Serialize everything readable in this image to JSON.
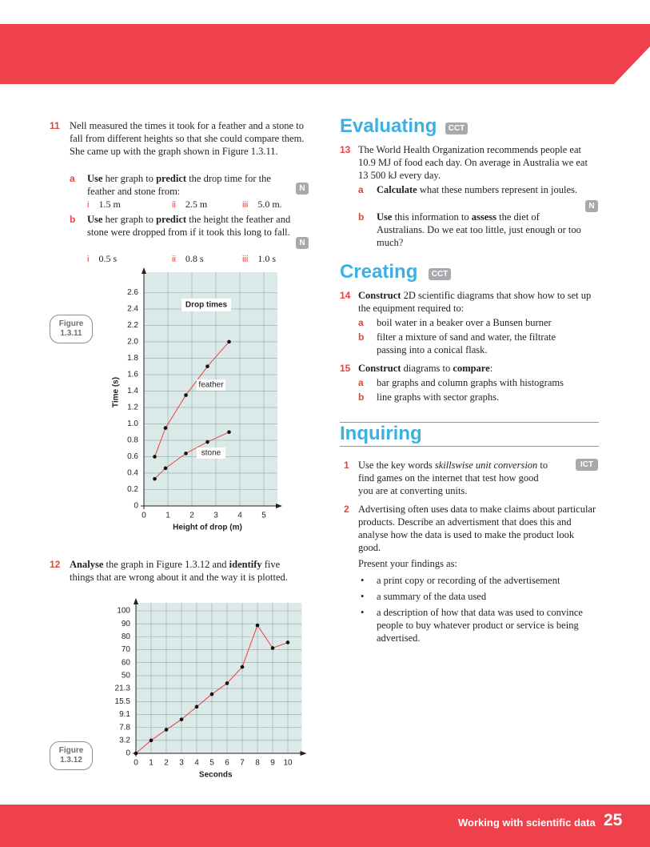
{
  "question_11": {
    "number": "11",
    "text": "Nell measured the times it took for a feather and a stone to fall from different heights so that she could compare them. She came up with the graph shown in Figure 1.3.11.",
    "parts": [
      {
        "letter": "a",
        "segments": [
          "Use",
          " her graph to ",
          "predict",
          " the drop time for the feather and stone from:"
        ],
        "badge": "N",
        "options": [
          {
            "numeral": "i",
            "text": "1.5 m"
          },
          {
            "numeral": "ii",
            "text": "2.5 m"
          },
          {
            "numeral": "iii",
            "text": "5.0 m."
          }
        ]
      },
      {
        "letter": "b",
        "segments": [
          "Use",
          " her graph to ",
          "predict",
          " the height the feather and stone were dropped from if it took this long to fall."
        ],
        "badge": "N",
        "options": [
          {
            "numeral": "i",
            "text": "0.5 s"
          },
          {
            "numeral": "ii",
            "text": "0.8 s"
          },
          {
            "numeral": "iii",
            "text": "1.0 s"
          }
        ]
      }
    ]
  },
  "figure_labels": [
    "Figure 1.3.11",
    "Figure 1.3.12"
  ],
  "question_12": {
    "number": "12",
    "segments": [
      "Analyse",
      " the graph in Figure 1.3.12 and ",
      "identify",
      " five things that are wrong about it and the way it is plotted."
    ]
  },
  "evaluating": {
    "heading": "Evaluating",
    "badge": "CCT",
    "question_13": {
      "number": "13",
      "text": "The World Health Organization recommends people eat 10.9 MJ of food each day. On average in Australia we eat 13 500 kJ every day.",
      "parts": [
        {
          "letter": "a",
          "segments": [
            "Calculate",
            " what these numbers represent in joules."
          ],
          "badge": "N"
        },
        {
          "letter": "b",
          "segments": [
            "Use",
            " this information to ",
            "assess",
            " the diet of Australians. Do we eat too little, just enough or too much?"
          ]
        }
      ]
    }
  },
  "creating": {
    "heading": "Creating",
    "badge": "CCT",
    "question_14": {
      "number": "14",
      "segments": [
        "Construct",
        " 2D scientific diagrams that show how to set up the equipment required to:"
      ],
      "parts": [
        {
          "letter": "a",
          "text": "boil water in a beaker over a Bunsen burner"
        },
        {
          "letter": "b",
          "text": "filter a mixture of sand and water, the filtrate passing into a conical flask."
        }
      ]
    },
    "question_15": {
      "number": "15",
      "segments": [
        "Construct",
        " diagrams to ",
        "compare",
        ":"
      ],
      "parts": [
        {
          "letter": "a",
          "text": "bar graphs and column graphs with histograms"
        },
        {
          "letter": "b",
          "text": "line graphs with sector graphs."
        }
      ]
    }
  },
  "inquiring": {
    "heading": "Inquiring",
    "question_1": {
      "number": "1",
      "segments": [
        "Use the key words ",
        "skillswise unit conversion",
        " to find games on the internet that test how good you are at converting units."
      ],
      "badge": "ICT"
    },
    "question_2": {
      "number": "2",
      "text": "Advertising often uses data to make claims about particular products. Describe an advertisment that does this and analyse how the data is used to make the product look good.",
      "prompt": "Present your findings as:",
      "bullets": [
        "a print copy or recording of the advertisement",
        "a summary of the data used",
        "a description of how that data was used to convince people to buy whatever product or service is being advertised."
      ]
    }
  },
  "footer": {
    "title": "Working with scientific data",
    "page": "25"
  },
  "chart_data": [
    {
      "type": "line",
      "title": "Drop times",
      "x_label": "Height of drop (m)",
      "y_label": "Time (s)",
      "x": [
        0.45,
        0.9,
        1.75,
        2.65,
        3.55
      ],
      "series": [
        {
          "name": "feather",
          "color": "#e8423a",
          "values": [
            0.6,
            0.95,
            1.35,
            1.7,
            2.0
          ]
        },
        {
          "name": "stone",
          "color": "#e8423a",
          "values": [
            0.33,
            0.46,
            0.64,
            0.78,
            0.9
          ]
        }
      ],
      "xlim": [
        0,
        5.3
      ],
      "ylim": [
        0,
        2.75
      ],
      "xticks": [
        0,
        1,
        2,
        3,
        4,
        5
      ],
      "yticks": [
        0,
        0.2,
        0.4,
        0.6,
        0.8,
        {
          "value": 1,
          "label": "1.0"
        },
        1.2,
        1.4,
        1.6,
        1.8,
        {
          "value": 2,
          "label": "2.0"
        },
        2.2,
        2.4,
        2.6
      ],
      "grid": true,
      "background": "#dce9e9"
    },
    {
      "type": "line",
      "x_label": "Seconds",
      "x": [
        0,
        1,
        2,
        3,
        4,
        5,
        6,
        7,
        8,
        9,
        10
      ],
      "series": [
        {
          "color": "#e8423a",
          "values": [
            0,
            3.2,
            7,
            8.6,
            12.9,
            18.8,
            33.1,
            56.7,
            88.8,
            71.3,
            75.6
          ]
        }
      ],
      "xlim": [
        0,
        10.5
      ],
      "ylim": [
        0,
        100
      ],
      "xticks": [
        0,
        1,
        2,
        3,
        4,
        5,
        6,
        7,
        8,
        9,
        10
      ],
      "yticks": [
        0,
        3.2,
        7.8,
        9.1,
        15.5,
        21.3,
        50,
        60,
        70,
        80,
        90,
        100
      ],
      "y_tick_spacing": "even",
      "grid": true,
      "background": "#dce9e9"
    }
  ]
}
